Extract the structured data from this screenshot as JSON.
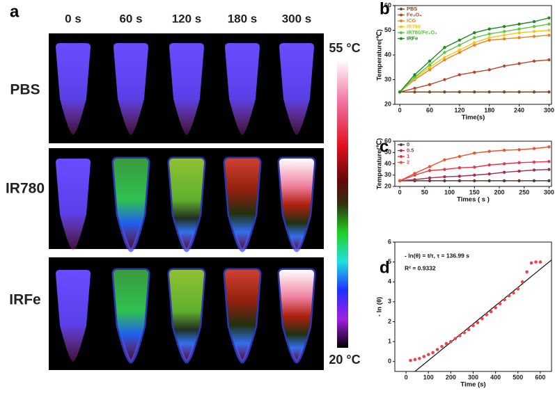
{
  "panel_labels": [
    "a",
    "b",
    "c",
    "d"
  ],
  "thermal_images": {
    "columns": [
      "0 s",
      "60 s",
      "120 s",
      "180 s",
      "300 s"
    ],
    "rows": [
      "PBS",
      "IR780",
      "IRFe"
    ],
    "scale_max": "55 °C",
    "scale_min": "20 °C"
  },
  "chart_data": [
    {
      "type": "line",
      "xlabel": "Time(s)",
      "ylabel": "Temperature(℃)",
      "x": [
        0,
        30,
        60,
        90,
        120,
        150,
        180,
        210,
        240,
        270,
        300
      ],
      "xlim": [
        -10,
        305
      ],
      "xticks": [
        0,
        60,
        120,
        180,
        240,
        300
      ],
      "ylim": [
        20,
        60
      ],
      "yticks": [
        20,
        30,
        40,
        50,
        60
      ],
      "legend": "upper left",
      "series": [
        {
          "name": "PBS",
          "color": "#7a4a2a",
          "values": [
            25,
            25,
            25,
            25,
            25,
            25,
            25,
            25,
            25,
            25,
            25
          ]
        },
        {
          "name": "Fe₃O₄",
          "color": "#b5462a",
          "values": [
            25,
            26.5,
            28,
            30,
            32,
            33,
            34,
            35.5,
            36.5,
            37.5,
            38
          ]
        },
        {
          "name": "ICG",
          "color": "#f07f22",
          "values": [
            25,
            30,
            34,
            38,
            41,
            44,
            46,
            46.5,
            47,
            47.5,
            48
          ]
        },
        {
          "name": "IR780",
          "color": "#f5c518",
          "values": [
            25,
            30.5,
            35,
            39,
            42,
            45,
            47,
            48,
            49,
            49.5,
            50
          ]
        },
        {
          "name": "IR780/Fe₃O₄",
          "color": "#5ac83c",
          "values": [
            25,
            31,
            36,
            41,
            44,
            47,
            48.5,
            49.5,
            50.5,
            51.5,
            52.5
          ]
        },
        {
          "name": "IRFe",
          "color": "#1e8a1e",
          "values": [
            25,
            32,
            37.5,
            43,
            46,
            49,
            50.5,
            51.5,
            52.5,
            53.5,
            55
          ]
        }
      ]
    },
    {
      "type": "line",
      "xlabel": "Times ( s )",
      "ylabel": "Temperature(℃)",
      "x": [
        0,
        30,
        60,
        90,
        120,
        150,
        180,
        210,
        240,
        270,
        300
      ],
      "xlim": [
        -10,
        305
      ],
      "xticks": [
        0,
        50,
        100,
        150,
        200,
        250,
        300
      ],
      "ylim": [
        20,
        60
      ],
      "yticks": [
        20,
        30,
        40,
        50,
        60
      ],
      "legend": "upper left",
      "series": [
        {
          "name": "0",
          "color": "#5a3a2a",
          "values": [
            25,
            25,
            25,
            25,
            25,
            25,
            25,
            25,
            25,
            25,
            25
          ]
        },
        {
          "name": "0.5",
          "color": "#a03050",
          "values": [
            25,
            26,
            27.5,
            28.5,
            29,
            30,
            31,
            32.5,
            33.5,
            34.5,
            35
          ]
        },
        {
          "name": "1",
          "color": "#e8344a",
          "values": [
            25,
            30,
            34,
            35,
            36.5,
            37,
            39,
            40,
            41,
            41.5,
            42
          ]
        },
        {
          "name": "2",
          "color": "#f05030",
          "values": [
            25,
            31.5,
            37.5,
            43.5,
            46.5,
            49.5,
            51,
            52,
            52.5,
            53.5,
            55
          ]
        }
      ]
    },
    {
      "type": "scatter",
      "xlabel": "Time (s)",
      "ylabel": "- ln (θ)",
      "annotations": [
        "- ln(θ) = t/τ, τ = 136.99 s",
        "R² = 0.9332"
      ],
      "xlim": [
        -50,
        650
      ],
      "xticks": [
        0,
        100,
        200,
        300,
        400,
        500,
        600
      ],
      "ylim": [
        -0.5,
        6
      ],
      "yticks": [
        0,
        1,
        2,
        3,
        4,
        5,
        6
      ],
      "color": "#f0404a",
      "line_color": "#111111",
      "x": [
        20,
        40,
        60,
        80,
        100,
        120,
        140,
        160,
        180,
        200,
        220,
        240,
        260,
        280,
        300,
        320,
        340,
        360,
        380,
        400,
        420,
        440,
        460,
        480,
        500,
        520,
        540,
        560,
        580,
        600
      ],
      "values": [
        0.05,
        0.1,
        0.15,
        0.25,
        0.35,
        0.45,
        0.6,
        0.75,
        0.9,
        1.0,
        1.15,
        1.3,
        1.45,
        1.6,
        1.8,
        1.95,
        2.15,
        2.35,
        2.5,
        2.7,
        2.9,
        3.1,
        3.3,
        3.45,
        3.65,
        4.0,
        4.5,
        4.95,
        5.0,
        5.0
      ],
      "fit_line": {
        "x": [
          40,
          650
        ],
        "y": [
          -0.5,
          5.1
        ]
      }
    }
  ]
}
